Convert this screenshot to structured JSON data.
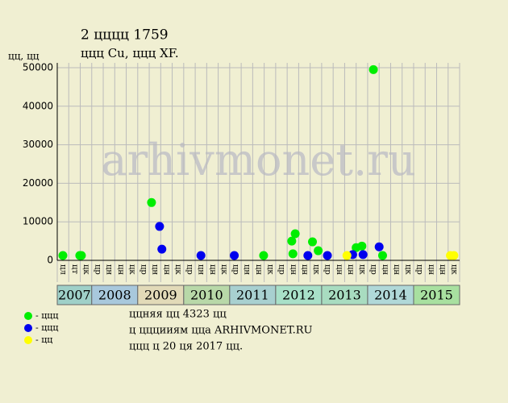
{
  "chart_data": {
    "type": "scatter",
    "title": "2 цццц 1759",
    "subtitle": "ццц Cu, ццц XF.",
    "y_label": "цц, цц",
    "watermark": "arhivmonet.ru",
    "xlim": [
      0,
      35
    ],
    "ylim": [
      0,
      50000
    ],
    "yticks": [
      0,
      10000,
      20000,
      30000,
      40000,
      50000
    ],
    "grid": true,
    "x_groups": [
      {
        "label": "2007",
        "color": "#9fd0c8",
        "categories": [
          "цл",
          "цт",
          "цк"
        ]
      },
      {
        "label": "2008",
        "color": "#a8c8dc",
        "categories": [
          "цр",
          "цн",
          "цн",
          "цк"
        ]
      },
      {
        "label": "2009",
        "color": "#e2dab8",
        "categories": [
          "цр",
          "цн",
          "цн",
          "цк"
        ]
      },
      {
        "label": "2010",
        "color": "#b8d8a8",
        "categories": [
          "цр",
          "цн",
          "цн",
          "цк"
        ]
      },
      {
        "label": "2011",
        "color": "#a8d0d0",
        "categories": [
          "цр",
          "цн",
          "цн",
          "цк"
        ]
      },
      {
        "label": "2012",
        "color": "#a8e0c8",
        "categories": [
          "цр",
          "цн",
          "цн",
          "цк"
        ]
      },
      {
        "label": "2013",
        "color": "#a8dcc0",
        "categories": [
          "цр",
          "цн",
          "цн",
          "цк"
        ]
      },
      {
        "label": "2014",
        "color": "#b0d8d8",
        "categories": [
          "цр",
          "цн",
          "цн",
          "цк"
        ]
      },
      {
        "label": "2015",
        "color": "#a8e0a0",
        "categories": [
          "цр",
          "цн",
          "цн",
          "цк"
        ]
      }
    ],
    "series": [
      {
        "name": "- ццц",
        "color": "#00ee00",
        "x": [
          0.49,
          1.96,
          2.1,
          8.2,
          17.95,
          20.4,
          20.7,
          20.5,
          22.2,
          22.7,
          26.0,
          26.5,
          27.5,
          28.3
        ],
        "values": [
          1250,
          1250,
          1250,
          15000,
          1250,
          5000,
          6900,
          1700,
          4800,
          2500,
          3300,
          3700,
          49500,
          1250
        ]
      },
      {
        "name": "- ццц",
        "color": "#0000ee",
        "x": [
          8.9,
          9.1,
          12.5,
          15.4,
          21.8,
          23.5,
          25.7,
          26.6,
          28.0
        ],
        "values": [
          8800,
          2900,
          1250,
          1250,
          1250,
          1250,
          1500,
          1500,
          3500
        ]
      },
      {
        "name": "- цц",
        "color": "#ffff00",
        "x": [
          25.2,
          34.2,
          34.5
        ],
        "values": [
          1250,
          1250,
          1250
        ]
      }
    ],
    "notes": [
      "ццняя цц 4323 цц",
      "ц цццииям цца ARHIVMONET.RU",
      "ццц ц 20 ця 2017 цц."
    ]
  }
}
